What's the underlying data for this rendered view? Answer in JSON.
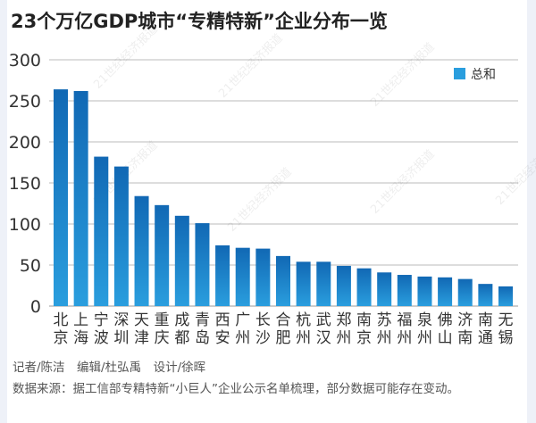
{
  "chart_data": {
    "type": "bar",
    "title": "23个万亿GDP城市“专精特新”企业分布一览",
    "categories": [
      "北京",
      "上海",
      "宁波",
      "深圳",
      "天津",
      "重庆",
      "成都",
      "青岛",
      "西安",
      "广州",
      "长沙",
      "合肥",
      "杭州",
      "武汉",
      "郑州",
      "南京",
      "苏州",
      "福州",
      "泉州",
      "佛山",
      "济南",
      "南通",
      "无锡"
    ],
    "series": [
      {
        "name": "总和",
        "values": [
          264,
          262,
          182,
          170,
          134,
          123,
          110,
          101,
          74,
          71,
          70,
          61,
          54,
          54,
          49,
          46,
          41,
          38,
          36,
          35,
          33,
          27,
          24
        ]
      }
    ],
    "ylim": [
      0,
      300
    ],
    "yticks": [
      0,
      50,
      100,
      150,
      200,
      250,
      300
    ],
    "grid": true,
    "legend": "top-right",
    "xlabel": "",
    "ylabel": "",
    "colors": {
      "bar_top": "#1168b4",
      "bar_bottom": "#2a9ede",
      "legend": "#2a9ede"
    }
  },
  "watermark": "21世纪经济报道",
  "footer": {
    "credits": "记者/陈洁　编辑/杜弘禹　设计/徐晖",
    "source": "数据来源：据工信部专精特新“小巨人”企业公示名单梳理，部分数据可能存在变动。"
  }
}
